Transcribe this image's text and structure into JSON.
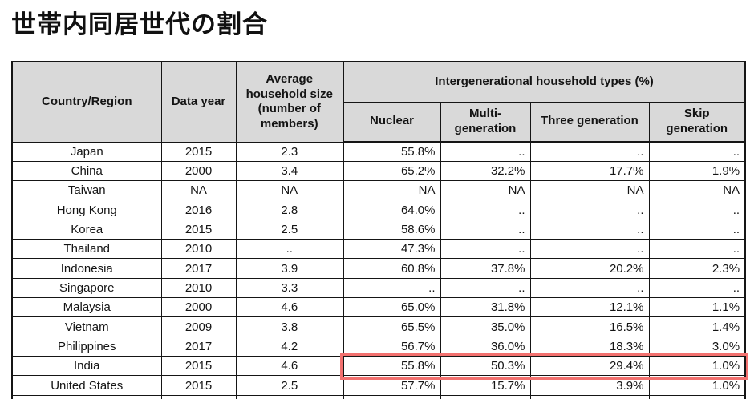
{
  "title": "世帯内同居世代の割合",
  "colors": {
    "header_bg": "#d9d9d9",
    "border_line": "#151515",
    "highlight_red": "#f3716f"
  },
  "table": {
    "header": {
      "country": "Country/Region",
      "data_year": "Data year",
      "avg_household": "Average household size (number of members)",
      "group": "Intergenerational household types (%)",
      "subcolumns": [
        "Nuclear",
        "Multi-generation",
        "Three generation",
        "Skip generation"
      ]
    },
    "rows": [
      {
        "country": "Japan",
        "year": "2015",
        "avg": "2.3",
        "nuclear": "55.8%",
        "multi": "..",
        "three": "..",
        "skip": ".."
      },
      {
        "country": "China",
        "year": "2000",
        "avg": "3.4",
        "nuclear": "65.2%",
        "multi": "32.2%",
        "three": "17.7%",
        "skip": "1.9%"
      },
      {
        "country": "Taiwan",
        "year": "NA",
        "avg": "NA",
        "nuclear": "NA",
        "multi": "NA",
        "three": "NA",
        "skip": "NA"
      },
      {
        "country": "Hong Kong",
        "year": "2016",
        "avg": "2.8",
        "nuclear": "64.0%",
        "multi": "..",
        "three": "..",
        "skip": ".."
      },
      {
        "country": "Korea",
        "year": "2015",
        "avg": "2.5",
        "nuclear": "58.6%",
        "multi": "..",
        "three": "..",
        "skip": ".."
      },
      {
        "country": "Thailand",
        "year": "2010",
        "avg": "..",
        "nuclear": "47.3%",
        "multi": "..",
        "three": "..",
        "skip": ".."
      },
      {
        "country": "Indonesia",
        "year": "2017",
        "avg": "3.9",
        "nuclear": "60.8%",
        "multi": "37.8%",
        "three": "20.2%",
        "skip": "2.3%"
      },
      {
        "country": "Singapore",
        "year": "2010",
        "avg": "3.3",
        "nuclear": "..",
        "multi": "..",
        "three": "..",
        "skip": ".."
      },
      {
        "country": "Malaysia",
        "year": "2000",
        "avg": "4.6",
        "nuclear": "65.0%",
        "multi": "31.8%",
        "three": "12.1%",
        "skip": "1.1%"
      },
      {
        "country": "Vietnam",
        "year": "2009",
        "avg": "3.8",
        "nuclear": "65.5%",
        "multi": "35.0%",
        "three": "16.5%",
        "skip": "1.4%"
      },
      {
        "country": "Philippines",
        "year": "2017",
        "avg": "4.2",
        "nuclear": "56.7%",
        "multi": "36.0%",
        "three": "18.3%",
        "skip": "3.0%"
      },
      {
        "country": "India",
        "year": "2015",
        "avg": "4.6",
        "nuclear": "55.8%",
        "multi": "50.3%",
        "three": "29.4%",
        "skip": "1.0%",
        "highlighted": true
      },
      {
        "country": "United States",
        "year": "2015",
        "avg": "2.5",
        "nuclear": "57.7%",
        "multi": "15.7%",
        "three": "3.9%",
        "skip": "1.0%"
      }
    ],
    "highlight": {
      "target_row": "India",
      "columns": [
        "Nuclear",
        "Multi-generation",
        "Three generation",
        "Skip generation"
      ]
    }
  }
}
